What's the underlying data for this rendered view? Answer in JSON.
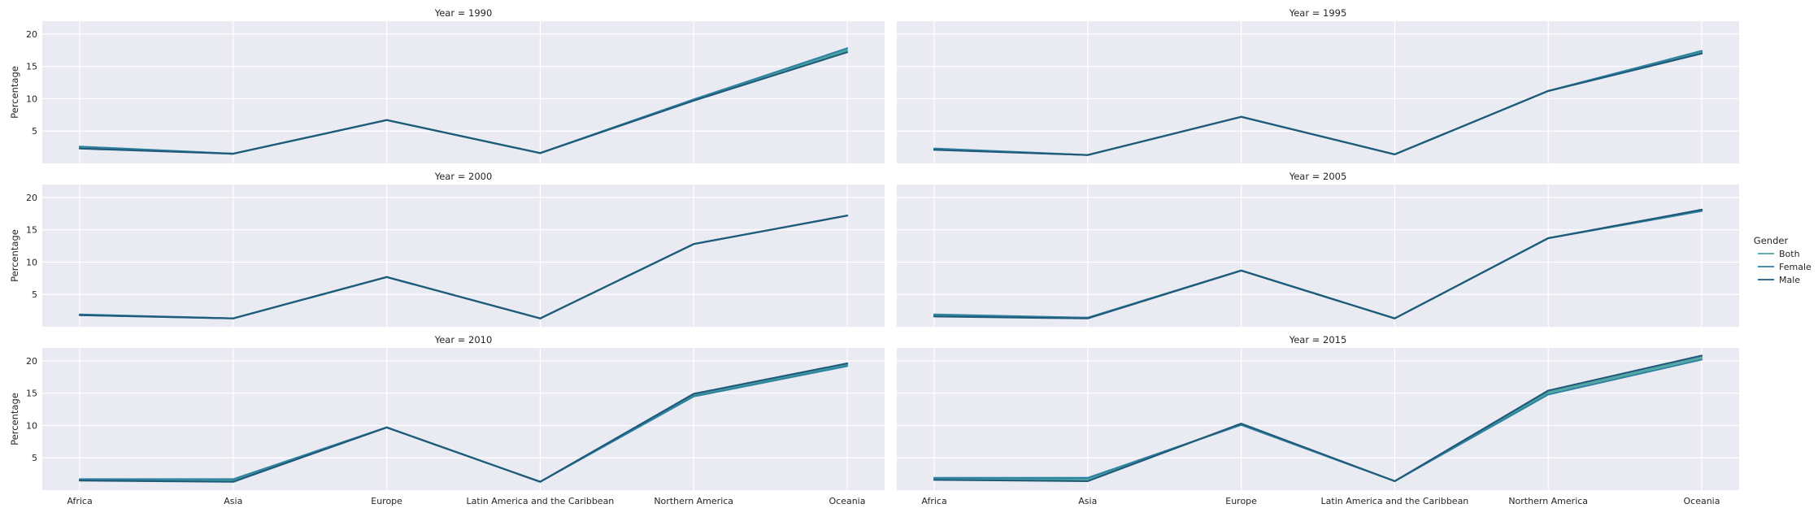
{
  "chart_data": {
    "type": "line",
    "facet": "Year",
    "categories": [
      "Africa",
      "Asia",
      "Europe",
      "Latin America and the Caribbean",
      "Northern America",
      "Oceania"
    ],
    "ylabel": "Percentage",
    "xlabel": "",
    "yticks": [
      5,
      10,
      15,
      20
    ],
    "ylim": [
      0,
      22
    ],
    "grid": true,
    "legend": {
      "title": "Gender",
      "placement": "right",
      "entries": [
        "Both",
        "Female",
        "Male"
      ]
    },
    "colors": {
      "Both": "#49a7a0",
      "Female": "#2f83a0",
      "Male": "#1f5a7a",
      "background": "#eaeaf2",
      "grid": "#ffffff"
    },
    "panels": [
      {
        "title": "Year = 1990",
        "series": [
          {
            "name": "Both",
            "values": [
              2.5,
              1.5,
              6.7,
              1.6,
              9.8,
              17.5
            ]
          },
          {
            "name": "Female",
            "values": [
              2.6,
              1.5,
              6.7,
              1.6,
              9.9,
              17.8
            ]
          },
          {
            "name": "Male",
            "values": [
              2.3,
              1.5,
              6.7,
              1.6,
              9.7,
              17.2
            ]
          }
        ]
      },
      {
        "title": "Year = 1995",
        "series": [
          {
            "name": "Both",
            "values": [
              2.2,
              1.3,
              7.2,
              1.4,
              11.2,
              17.2
            ]
          },
          {
            "name": "Female",
            "values": [
              2.3,
              1.3,
              7.2,
              1.4,
              11.2,
              17.4
            ]
          },
          {
            "name": "Male",
            "values": [
              2.1,
              1.3,
              7.2,
              1.4,
              11.2,
              17.0
            ]
          }
        ]
      },
      {
        "title": "Year = 2000",
        "series": [
          {
            "name": "Both",
            "values": [
              1.8,
              1.3,
              7.7,
              1.3,
              12.8,
              17.2
            ]
          },
          {
            "name": "Female",
            "values": [
              1.9,
              1.3,
              7.7,
              1.3,
              12.8,
              17.2
            ]
          },
          {
            "name": "Male",
            "values": [
              1.8,
              1.3,
              7.7,
              1.3,
              12.8,
              17.2
            ]
          }
        ]
      },
      {
        "title": "Year = 2005",
        "series": [
          {
            "name": "Both",
            "values": [
              1.7,
              1.4,
              8.7,
              1.3,
              13.7,
              18.0
            ]
          },
          {
            "name": "Female",
            "values": [
              1.9,
              1.4,
              8.7,
              1.3,
              13.7,
              17.9
            ]
          },
          {
            "name": "Male",
            "values": [
              1.6,
              1.3,
              8.7,
              1.3,
              13.7,
              18.1
            ]
          }
        ]
      },
      {
        "title": "Year = 2010",
        "series": [
          {
            "name": "Both",
            "values": [
              1.6,
              1.5,
              9.7,
              1.3,
              14.7,
              19.4
            ]
          },
          {
            "name": "Female",
            "values": [
              1.7,
              1.7,
              9.7,
              1.3,
              14.5,
              19.2
            ]
          },
          {
            "name": "Male",
            "values": [
              1.5,
              1.3,
              9.7,
              1.3,
              14.9,
              19.6
            ]
          }
        ]
      },
      {
        "title": "Year = 2015",
        "series": [
          {
            "name": "Both",
            "values": [
              1.7,
              1.7,
              10.2,
              1.4,
              15.1,
              20.5
            ]
          },
          {
            "name": "Female",
            "values": [
              1.9,
              1.9,
              10.1,
              1.4,
              14.8,
              20.2
            ]
          },
          {
            "name": "Male",
            "values": [
              1.6,
              1.4,
              10.3,
              1.4,
              15.4,
              20.8
            ]
          }
        ]
      }
    ]
  }
}
